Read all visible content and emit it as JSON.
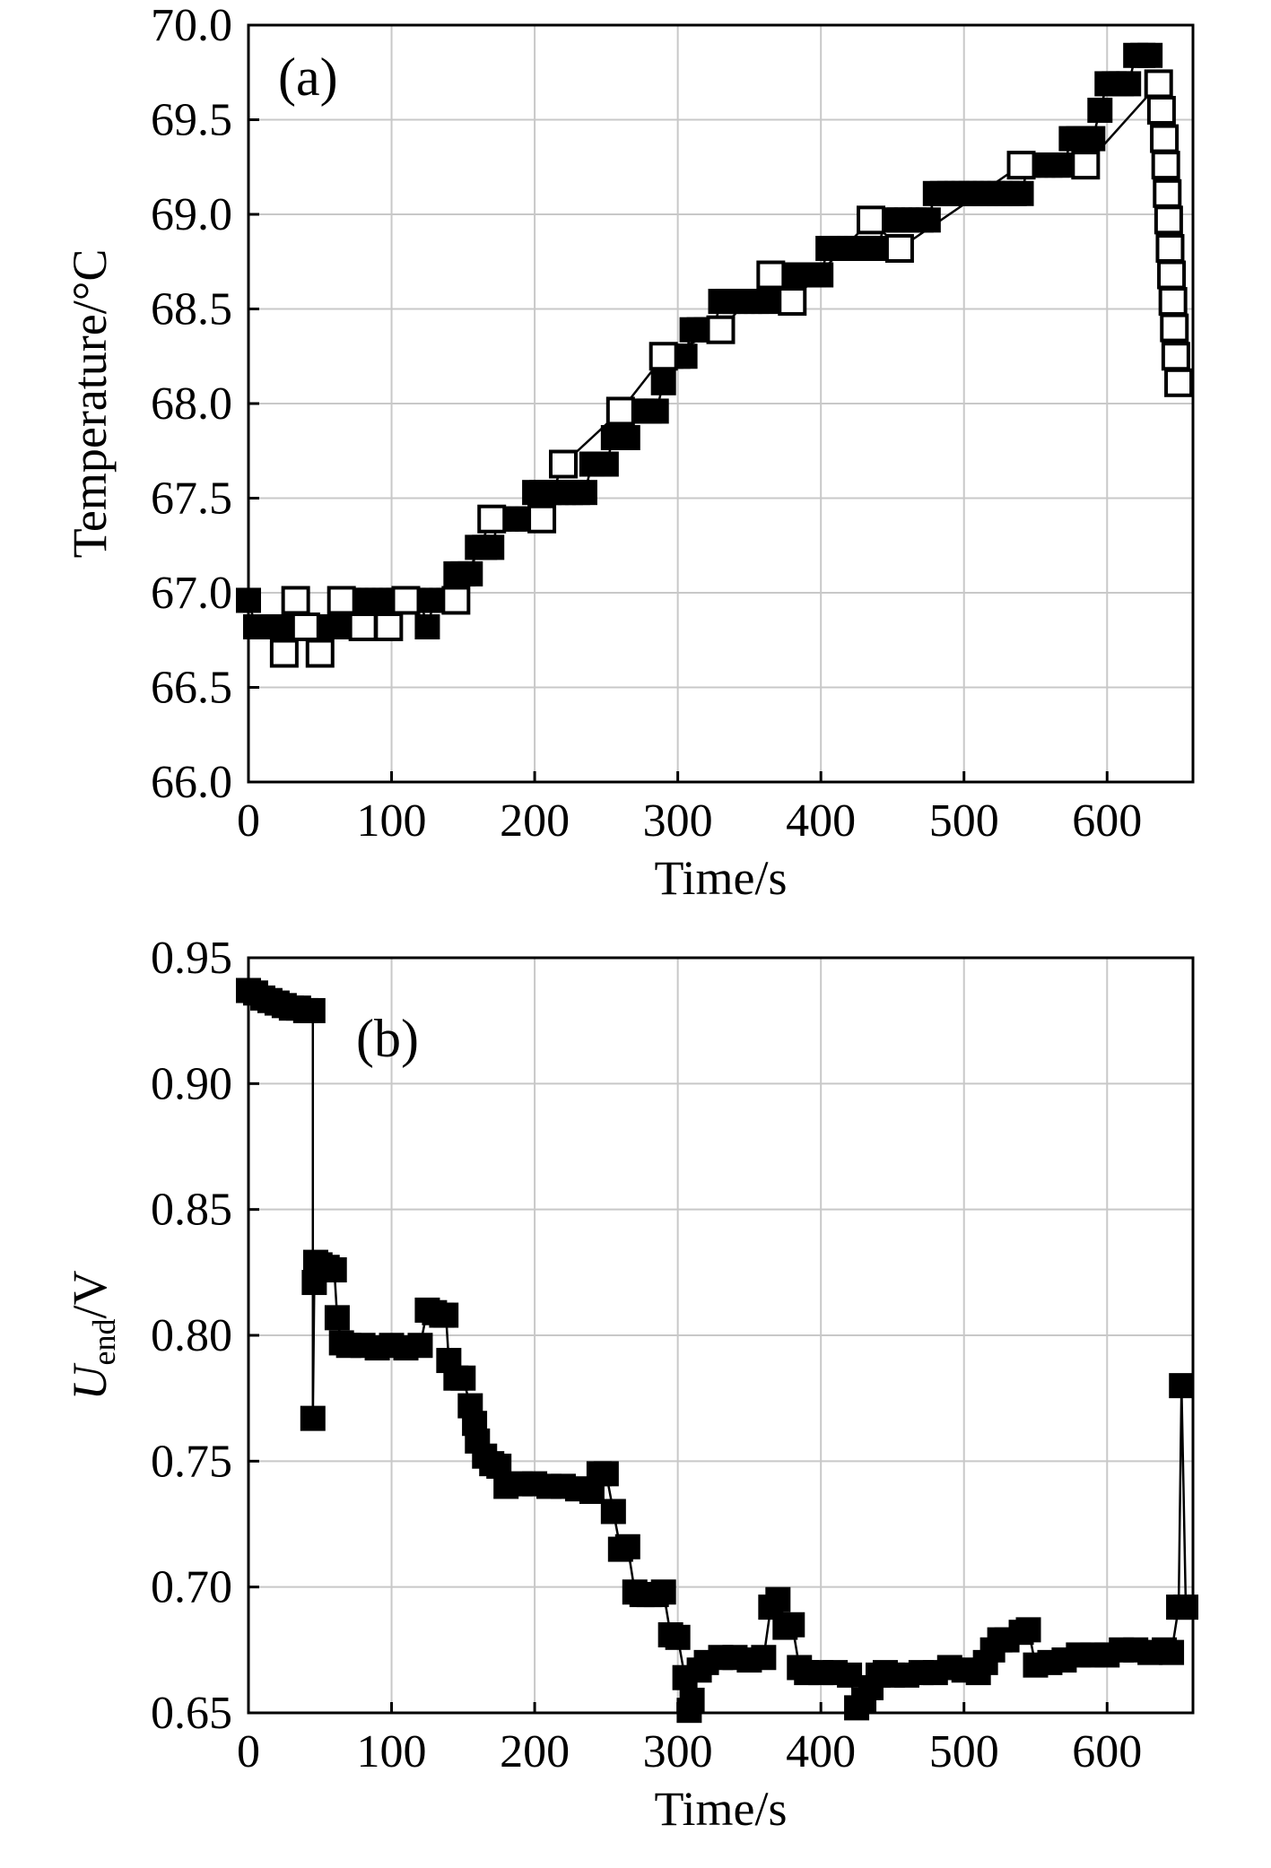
{
  "chart_data": [
    {
      "type": "scatter",
      "panel_label": "(a)",
      "xlabel": "Time/s",
      "ylabel": "Temperature/°C",
      "xlim": [
        0,
        660
      ],
      "ylim": [
        66.0,
        70.0
      ],
      "xticks": [
        "0",
        "100",
        "200",
        "300",
        "400",
        "500",
        "600"
      ],
      "yticks": [
        "66.0",
        "66.5",
        "67.0",
        "67.5",
        "68.0",
        "68.5",
        "69.0",
        "69.5",
        "70.0"
      ],
      "grid": true,
      "marker_filled_color": "#000000",
      "marker_open_color": "#000000",
      "series": [
        {
          "marker": "filled-square",
          "x": [
            0,
            5,
            10,
            15,
            20,
            25,
            30,
            35,
            40,
            45,
            50,
            55,
            60,
            65,
            70,
            75,
            80,
            85,
            90,
            95,
            100,
            105,
            110,
            115,
            120,
            125,
            130,
            135,
            140,
            145,
            150,
            155,
            160,
            165,
            170,
            175,
            180,
            185,
            190,
            195,
            200,
            205,
            210,
            215,
            220,
            225,
            230,
            235,
            240,
            245,
            250,
            255,
            260,
            265,
            270,
            275,
            280,
            285,
            290,
            295,
            300,
            305,
            310,
            315,
            320,
            325,
            330,
            335,
            340,
            345,
            350,
            355,
            360,
            365,
            370,
            375,
            380,
            385,
            390,
            395,
            400,
            405,
            410,
            415,
            420,
            425,
            430,
            435,
            440,
            445,
            450,
            455,
            460,
            465,
            470,
            475,
            480,
            485,
            490,
            495,
            500,
            505,
            510,
            515,
            520,
            525,
            530,
            535,
            540,
            545,
            550,
            555,
            560,
            565,
            570,
            575,
            580,
            585,
            590,
            595,
            600,
            605,
            610,
            615,
            620,
            625,
            630
          ],
          "y": [
            66.96,
            66.82,
            66.82,
            66.82,
            66.82,
            66.82,
            66.82,
            66.82,
            66.82,
            66.82,
            66.82,
            66.82,
            66.82,
            66.82,
            66.96,
            66.96,
            66.96,
            66.96,
            66.96,
            66.96,
            66.96,
            66.96,
            66.96,
            66.96,
            66.96,
            66.82,
            66.96,
            66.96,
            66.96,
            67.1,
            67.1,
            67.1,
            67.24,
            67.24,
            67.24,
            67.39,
            67.39,
            67.39,
            67.39,
            67.39,
            67.53,
            67.53,
            67.53,
            67.53,
            67.53,
            67.53,
            67.53,
            67.53,
            67.68,
            67.68,
            67.68,
            67.82,
            67.82,
            67.82,
            67.96,
            67.96,
            67.96,
            67.96,
            68.11,
            68.25,
            68.25,
            68.25,
            68.39,
            68.39,
            68.39,
            68.39,
            68.54,
            68.54,
            68.54,
            68.54,
            68.54,
            68.54,
            68.54,
            68.54,
            68.68,
            68.68,
            68.68,
            68.68,
            68.68,
            68.68,
            68.68,
            68.82,
            68.82,
            68.82,
            68.82,
            68.82,
            68.82,
            68.82,
            68.82,
            68.97,
            68.97,
            68.97,
            68.97,
            68.97,
            68.97,
            68.97,
            69.11,
            69.11,
            69.11,
            69.11,
            69.11,
            69.11,
            69.11,
            69.11,
            69.11,
            69.11,
            69.11,
            69.11,
            69.11,
            69.26,
            69.26,
            69.26,
            69.26,
            69.26,
            69.26,
            69.4,
            69.4,
            69.4,
            69.4,
            69.55,
            69.69,
            69.69,
            69.69,
            69.69,
            69.84,
            69.84,
            69.84
          ]
        },
        {
          "marker": "open-square",
          "x": [
            25,
            33,
            40,
            50,
            65,
            80,
            98,
            110,
            145,
            170,
            205,
            220,
            260,
            290,
            330,
            365,
            380,
            435,
            455,
            540,
            585,
            636,
            638,
            640,
            641,
            642,
            643,
            644,
            645,
            646,
            647,
            648,
            650
          ],
          "y": [
            66.68,
            66.96,
            66.82,
            66.68,
            66.96,
            66.82,
            66.82,
            66.96,
            66.96,
            67.39,
            67.39,
            67.68,
            67.96,
            68.25,
            68.39,
            68.68,
            68.54,
            68.97,
            68.82,
            69.26,
            69.26,
            69.69,
            69.55,
            69.4,
            69.26,
            69.11,
            68.97,
            68.82,
            68.68,
            68.54,
            68.4,
            68.25,
            68.11
          ]
        }
      ]
    },
    {
      "type": "line",
      "panel_label": "(b)",
      "xlabel": "Time/s",
      "ylabel_main": "U",
      "ylabel_sub": "end",
      "ylabel_tail": "/V",
      "xlim": [
        0,
        660
      ],
      "ylim": [
        0.65,
        0.95
      ],
      "xticks": [
        "0",
        "100",
        "200",
        "300",
        "400",
        "500",
        "600"
      ],
      "yticks": [
        "0.65",
        "0.70",
        "0.75",
        "0.80",
        "0.85",
        "0.90",
        "0.95"
      ],
      "grid": true,
      "marker": "filled-square",
      "series_color": "#000000",
      "x": [
        0,
        5,
        10,
        15,
        20,
        25,
        30,
        35,
        40,
        45,
        45,
        46,
        47,
        50,
        55,
        60,
        62,
        65,
        70,
        80,
        90,
        100,
        110,
        120,
        125,
        130,
        135,
        138,
        140,
        145,
        150,
        155,
        158,
        160,
        165,
        170,
        175,
        180,
        190,
        200,
        210,
        220,
        230,
        240,
        245,
        250,
        255,
        260,
        265,
        270,
        275,
        280,
        285,
        290,
        295,
        300,
        305,
        308,
        310,
        315,
        320,
        330,
        340,
        350,
        360,
        365,
        370,
        375,
        380,
        385,
        390,
        400,
        410,
        420,
        425,
        430,
        435,
        440,
        445,
        450,
        460,
        470,
        480,
        490,
        500,
        510,
        515,
        520,
        525,
        530,
        540,
        545,
        550,
        560,
        570,
        580,
        590,
        600,
        610,
        620,
        630,
        640,
        645,
        650,
        652,
        655
      ],
      "y": [
        0.937,
        0.936,
        0.934,
        0.933,
        0.932,
        0.931,
        0.93,
        0.93,
        0.929,
        0.929,
        0.767,
        0.821,
        0.829,
        0.828,
        0.827,
        0.826,
        0.807,
        0.797,
        0.796,
        0.796,
        0.795,
        0.796,
        0.795,
        0.796,
        0.81,
        0.809,
        0.808,
        0.808,
        0.79,
        0.783,
        0.783,
        0.772,
        0.765,
        0.758,
        0.752,
        0.749,
        0.748,
        0.74,
        0.741,
        0.741,
        0.74,
        0.74,
        0.739,
        0.738,
        0.745,
        0.745,
        0.73,
        0.715,
        0.716,
        0.698,
        0.697,
        0.697,
        0.697,
        0.698,
        0.681,
        0.68,
        0.664,
        0.651,
        0.655,
        0.667,
        0.67,
        0.672,
        0.672,
        0.671,
        0.672,
        0.692,
        0.695,
        0.684,
        0.685,
        0.668,
        0.666,
        0.666,
        0.666,
        0.665,
        0.652,
        0.655,
        0.66,
        0.665,
        0.666,
        0.665,
        0.665,
        0.666,
        0.666,
        0.668,
        0.667,
        0.666,
        0.67,
        0.675,
        0.679,
        0.679,
        0.682,
        0.683,
        0.669,
        0.67,
        0.671,
        0.673,
        0.673,
        0.673,
        0.675,
        0.675,
        0.674,
        0.675,
        0.674,
        0.692,
        0.78,
        0.692
      ]
    }
  ]
}
